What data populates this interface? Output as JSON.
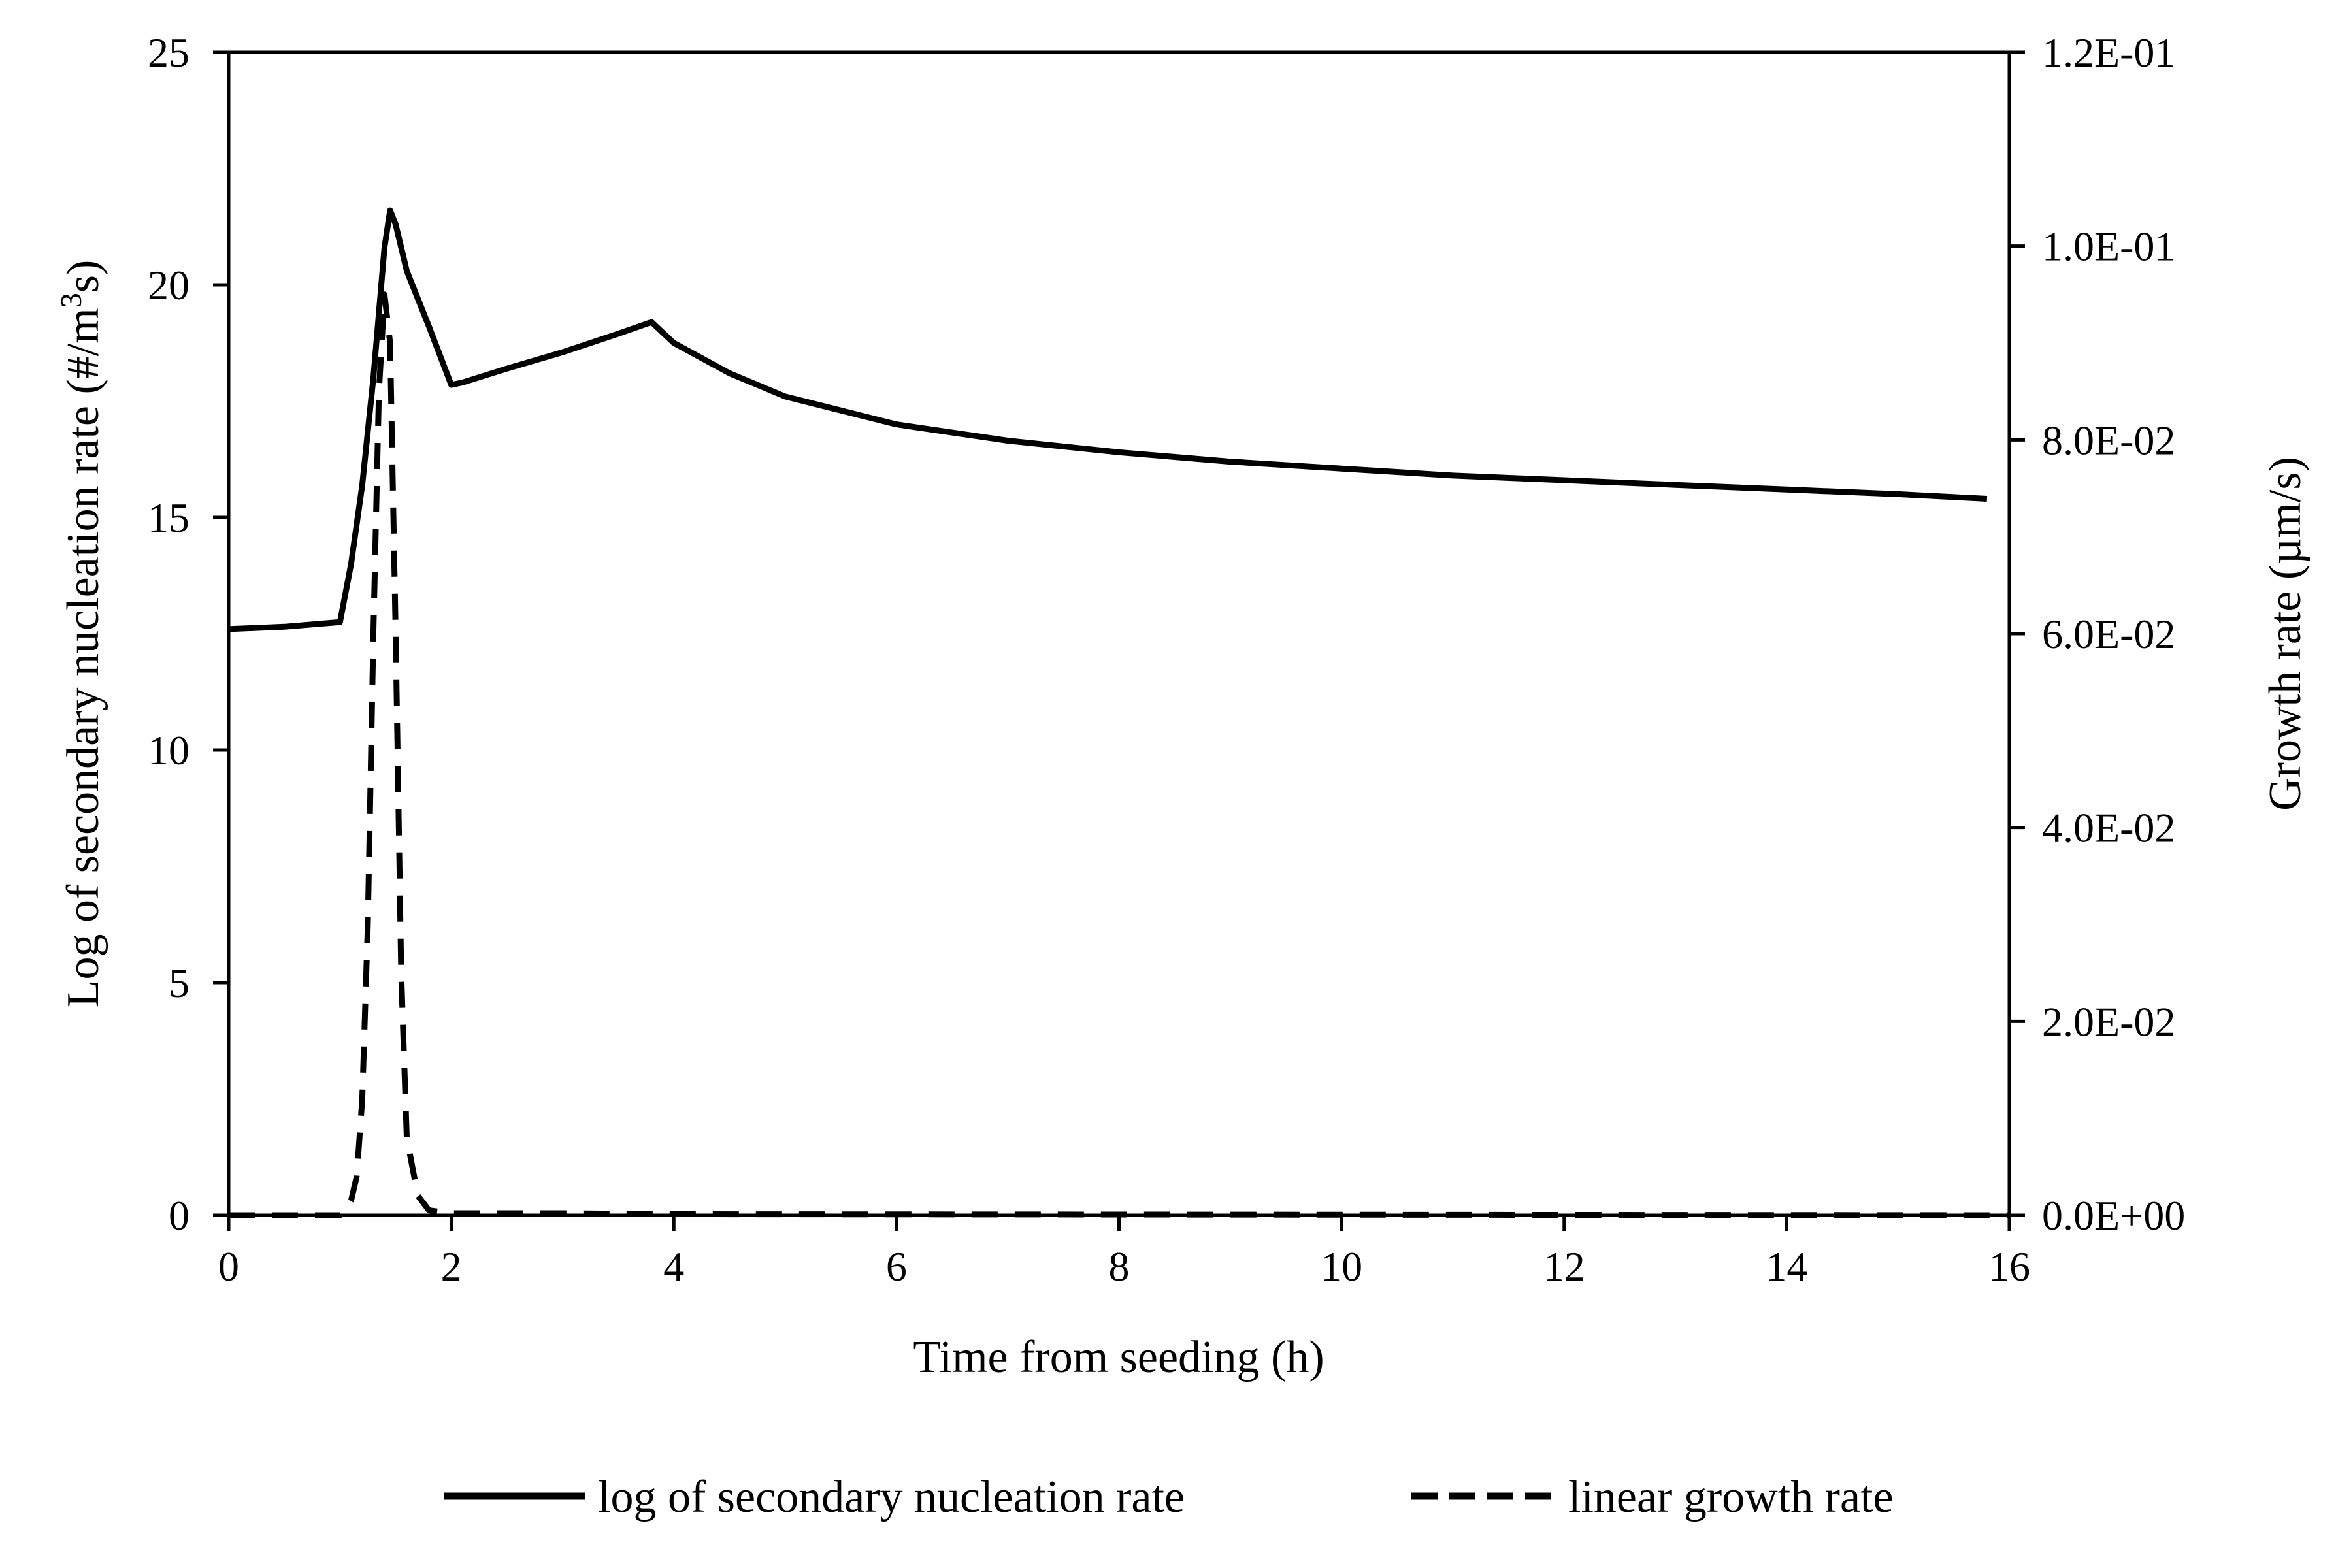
{
  "chart_data": {
    "type": "line",
    "title": "",
    "xlabel": "Time from seeding (h)",
    "ylabel_left": "Log of secondary nucleation rate (#/m³s)",
    "ylabel_left_parts": [
      "Log of secondary nucleation rate (#/m",
      "3",
      "s)"
    ],
    "ylabel_right": "Growth rate (µm/s)",
    "xlim": [
      0,
      16
    ],
    "ylim_left": [
      0,
      25
    ],
    "ylim_right": [
      0,
      0.12
    ],
    "xticks": [
      "0",
      "2",
      "4",
      "6",
      "8",
      "10",
      "12",
      "14",
      "16"
    ],
    "yticks_left": [
      "0",
      "5",
      "10",
      "15",
      "20",
      "25"
    ],
    "yticks_right": [
      "0.0E+00",
      "2.0E-02",
      "4.0E-02",
      "6.0E-02",
      "8.0E-02",
      "1.0E-01",
      "1.2E-01"
    ],
    "grid": false,
    "legend_position": "bottom-center",
    "colors": {
      "line": "#000000"
    },
    "series": [
      {
        "name": "log of secondary nucleation rate",
        "style": "solid",
        "axis": "left",
        "x": [
          0,
          0.5,
          1.0,
          1.1,
          1.2,
          1.3,
          1.4,
          1.45,
          1.5,
          1.6,
          1.8,
          2.0,
          2.1,
          2.5,
          3.0,
          3.5,
          3.8,
          4.0,
          4.5,
          5.0,
          6.0,
          7.0,
          8.0,
          9.0,
          10.0,
          11.0,
          12.0,
          13.0,
          14.0,
          15.0,
          15.8
        ],
        "values": [
          12.6,
          12.65,
          12.75,
          14.0,
          15.7,
          18.0,
          20.8,
          21.6,
          21.3,
          20.3,
          19.1,
          17.85,
          17.9,
          18.2,
          18.55,
          18.95,
          19.2,
          18.75,
          18.1,
          17.6,
          17.0,
          16.65,
          16.4,
          16.2,
          16.05,
          15.9,
          15.8,
          15.7,
          15.6,
          15.5,
          15.4
        ]
      },
      {
        "name": "linear growth rate",
        "style": "dashed",
        "axis": "right",
        "x": [
          0,
          1.0,
          1.05,
          1.1,
          1.15,
          1.2,
          1.25,
          1.3,
          1.35,
          1.4,
          1.45,
          1.5,
          1.55,
          1.6,
          1.7,
          1.8,
          2.0,
          3.0,
          4.0,
          16.0
        ],
        "values": [
          0,
          0,
          0.0005,
          0.0015,
          0.004,
          0.012,
          0.03,
          0.06,
          0.085,
          0.095,
          0.09,
          0.06,
          0.025,
          0.008,
          0.002,
          0.0005,
          0.0002,
          0.0002,
          0.0001,
          0
        ]
      }
    ]
  }
}
